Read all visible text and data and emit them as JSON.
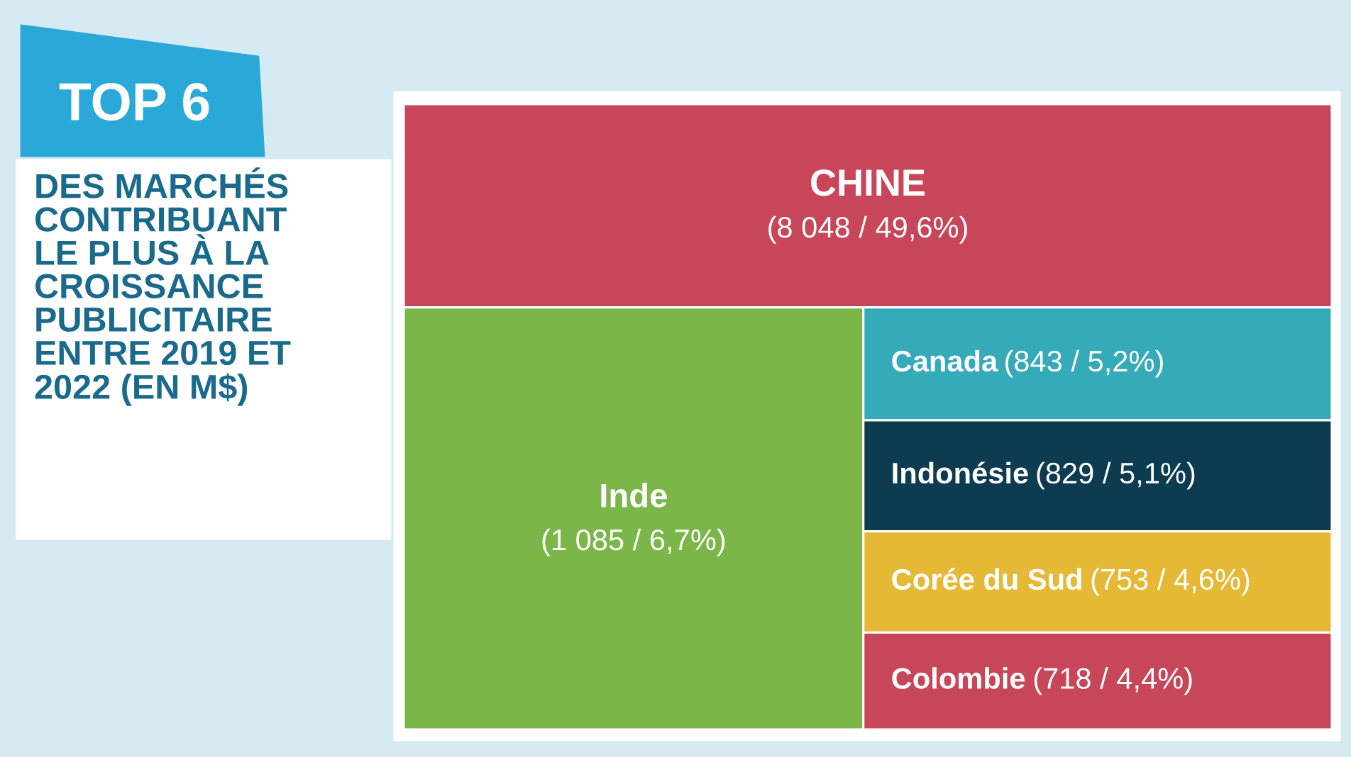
{
  "chart_data": {
    "type": "other",
    "title": "TOP 6",
    "subtitle": "DES MARCHÉS\nCONTRIBUANT\nLE PLUS À LA\nCROISSANCE\nPUBLICITAIRE\nENTRE 2019 ET\n2022 (EN M$)",
    "categories": [
      "CHINE",
      "Inde",
      "Canada",
      "Indonésie",
      "Corée du Sud",
      "Colombie"
    ],
    "values": [
      8048,
      1085,
      843,
      829,
      753,
      718
    ],
    "value_labels": [
      "(8 048 / 49,6%)",
      "(1 085 / 6,7%)",
      "(843 / 5,2%)",
      "(829 / 5,1%)",
      "(753 / 4,6%)",
      "(718 / 4,4%)"
    ],
    "colors": [
      "#c8465a",
      "#7ab648",
      "#35aab8",
      "#0d3b4f",
      "#e5b935",
      "#c8465a"
    ]
  }
}
